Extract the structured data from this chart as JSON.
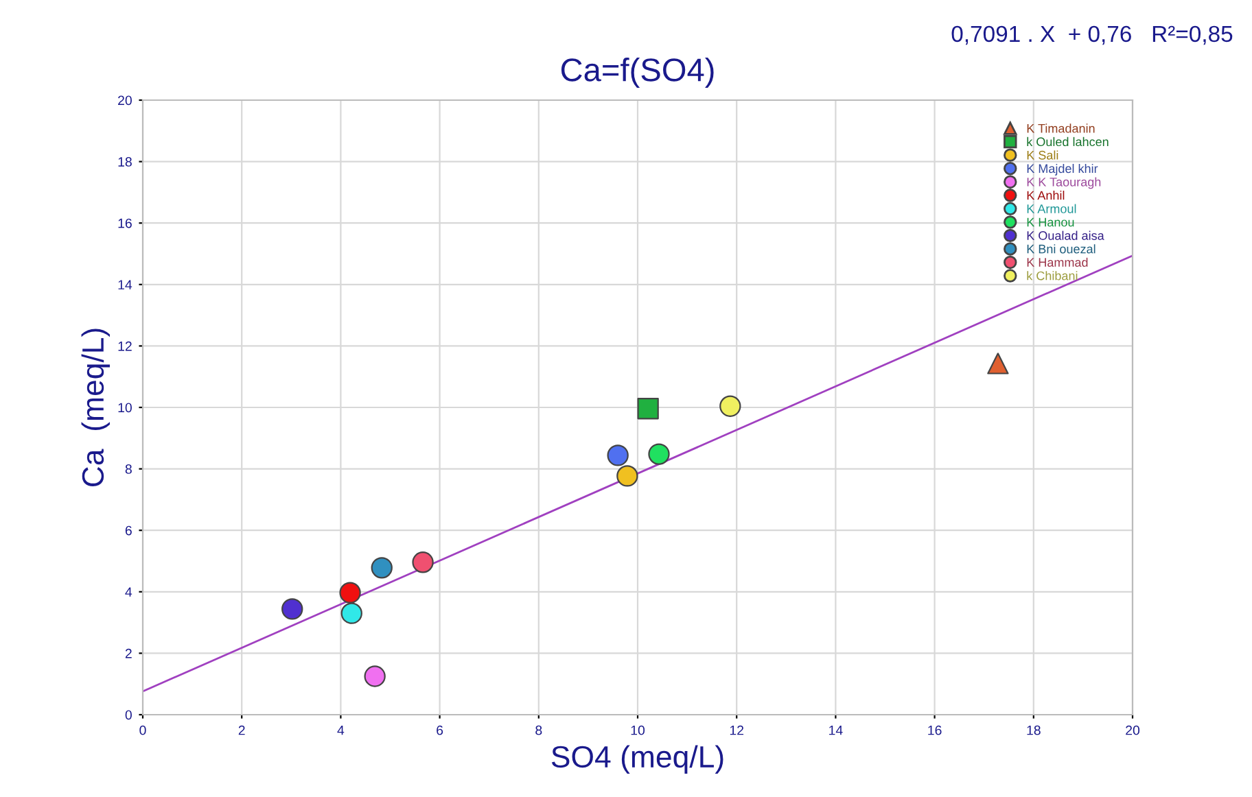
{
  "chart_data": {
    "type": "scatter",
    "title": "Ca=f(SO4)",
    "xlabel": "SO4 (meq/L)",
    "ylabel": "Ca  (meq/L)",
    "annotations": [
      "0,7091 . X  + 0,76   R²=0,85"
    ],
    "xlim": [
      0,
      20
    ],
    "xticks": [
      0,
      2,
      4,
      6,
      8,
      10,
      12,
      14,
      16,
      18,
      20
    ],
    "ylim": [
      0,
      20
    ],
    "yticks": [
      0,
      2,
      4,
      6,
      8,
      10,
      12,
      14,
      16,
      18,
      20
    ],
    "grid": true,
    "legend": "top right",
    "series": [
      {
        "name": "K Timadanin",
        "color": "#e06030",
        "marker": "triangle",
        "x": [
          17.28
        ],
        "values": [
          11.43
        ]
      },
      {
        "name": "k Ouled lahcen",
        "color": "#20b040",
        "marker": "square",
        "x": [
          10.21
        ],
        "values": [
          9.96
        ]
      },
      {
        "name": "K Sali",
        "color": "#f0c020",
        "x": [
          9.79
        ],
        "values": [
          7.77
        ]
      },
      {
        "name": "K Majdel khir",
        "color": "#5070f0",
        "x": [
          9.6
        ],
        "values": [
          8.44
        ]
      },
      {
        "name": "K K Taouragh",
        "color": "#f070f0",
        "x": [
          4.69
        ],
        "values": [
          1.25
        ]
      },
      {
        "name": "K Anhil",
        "color": "#f01010",
        "marker": "circle",
        "x": [
          4.19
        ],
        "values": [
          3.97
        ]
      },
      {
        "name": "K Armoul",
        "color": "#30e8e8",
        "marker": "circle",
        "x": [
          4.22
        ],
        "values": [
          3.3
        ]
      },
      {
        "name": "K Hanou",
        "color": "#20e060",
        "marker": "circle",
        "x": [
          10.43
        ],
        "values": [
          8.48
        ]
      },
      {
        "name": "K Oualad aisa",
        "color": "#5030d0",
        "marker": "circle",
        "x": [
          3.02
        ],
        "values": [
          3.44
        ]
      },
      {
        "name": "K Bni ouezal",
        "color": "#3090c0",
        "marker": "circle",
        "x": [
          4.83
        ],
        "values": [
          4.78
        ]
      },
      {
        "name": "K Hammad",
        "color": "#f05070",
        "marker": "circle",
        "x": [
          5.66
        ],
        "values": [
          4.96
        ]
      },
      {
        "name": "k Chibani",
        "color": "#f0f060",
        "marker": "circle",
        "x": [
          11.87
        ],
        "values": [
          10.04
        ]
      },
      {
        "type": "line",
        "color": "#a040c0",
        "marker": "none",
        "x": [
          0,
          20
        ],
        "values": [
          0.76,
          14.94
        ]
      }
    ]
  }
}
